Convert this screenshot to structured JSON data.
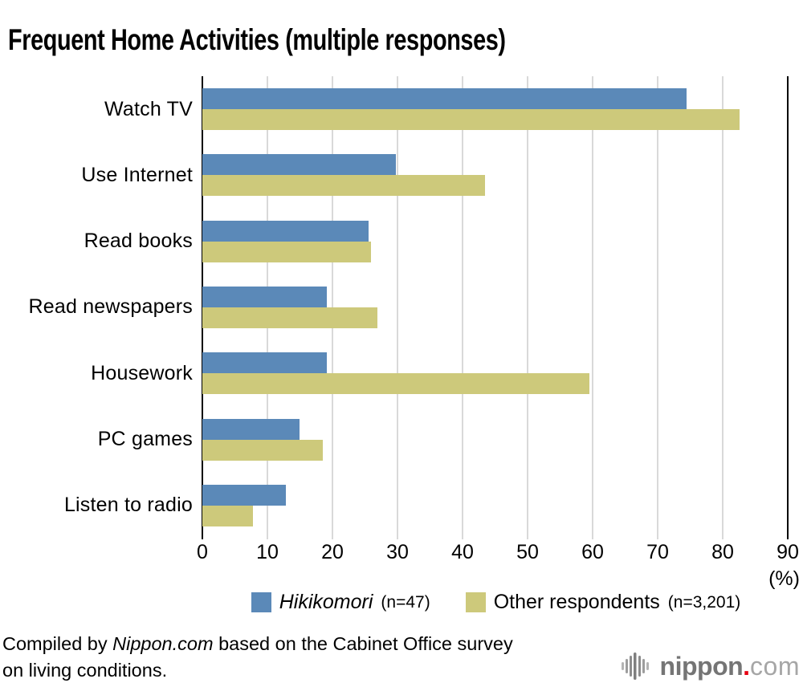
{
  "title": "Frequent Home Activities (multiple responses)",
  "chart_data": {
    "type": "bar",
    "orientation": "horizontal",
    "title": "Frequent Home Activities (multiple responses)",
    "categories": [
      "Watch TV",
      "Use Internet",
      "Read books",
      "Read newspapers",
      "Housework",
      "PC games",
      "Listen to radio"
    ],
    "series": [
      {
        "name": "Hikikomori",
        "legend_sub": "(n=47)",
        "italic": true,
        "color": "#5b89b8",
        "values": [
          74.5,
          29.8,
          25.5,
          19.1,
          19.1,
          14.9,
          12.8
        ]
      },
      {
        "name": "Other respondents",
        "legend_sub": "(n=3,201)",
        "italic": false,
        "color": "#cdc97b",
        "values": [
          82.6,
          43.4,
          25.9,
          26.9,
          59.5,
          18.5,
          7.8
        ]
      }
    ],
    "xlim": [
      0,
      90
    ],
    "xticks": [
      0,
      10,
      20,
      30,
      40,
      50,
      60,
      70,
      80,
      90
    ],
    "x_unit_label": "(%)",
    "grid": "vertical",
    "gridline_color": "#d9d9d9",
    "axis_color": "#000000",
    "legend_position": "bottom"
  },
  "footer": {
    "line1_prefix": "Compiled by ",
    "line1_italic": "Nippon.com",
    "line1_suffix": " based on the Cabinet Office survey",
    "line2": "on living conditions."
  },
  "logo": {
    "wave_icon": "sound-wave-icon",
    "word": "nippon",
    "dot": ".",
    "tld": "com"
  }
}
